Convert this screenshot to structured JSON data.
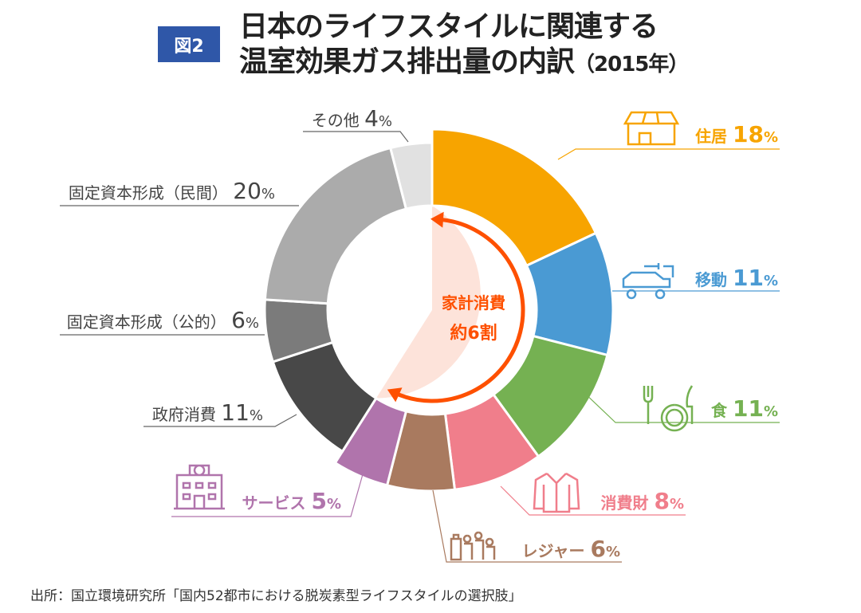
{
  "figure_label": "図2",
  "title_line1": "日本のライフスタイルに関連する",
  "title_line2": "温室効果ガス排出量の内訳",
  "title_year": "（2015年）",
  "source": "出所：国立環境研究所「国内52都市における脱炭素型ライフスタイルの選択肢」",
  "chart_data": {
    "type": "pie",
    "donut": true,
    "unit": "%",
    "title": "日本のライフスタイルに関連する温室効果ガス排出量の内訳（2015年）",
    "center_label": [
      "家計消費",
      "約6割"
    ],
    "household_group_value": 59,
    "slices": [
      {
        "label": "住居",
        "value": 18,
        "color": "#F7A400",
        "group": "household",
        "icon": "house-solar-icon"
      },
      {
        "label": "移動",
        "value": 11,
        "color": "#4A9AD3",
        "group": "household",
        "icon": "electric-car-icon"
      },
      {
        "label": "食",
        "value": 11,
        "color": "#75B152",
        "group": "household",
        "icon": "fork-plate-icon"
      },
      {
        "label": "消費財",
        "value": 8,
        "color": "#F07E8B",
        "group": "household",
        "icon": "shirt-icon"
      },
      {
        "label": "レジャー",
        "value": 6,
        "color": "#A97A5F",
        "group": "household",
        "icon": "family-luggage-icon"
      },
      {
        "label": "サービス",
        "value": 5,
        "color": "#B074AC",
        "group": "household",
        "icon": "hospital-building-icon"
      },
      {
        "label": "政府消費",
        "value": 11,
        "color": "#484848",
        "group": "other"
      },
      {
        "label": "固定資本形成（公的）",
        "value": 6,
        "color": "#7B7B7B",
        "group": "other"
      },
      {
        "label": "固定資本形成（民間）",
        "value": 20,
        "color": "#ABABAB",
        "group": "other"
      },
      {
        "label": "その他",
        "value": 4,
        "color": "#E1E1E1",
        "group": "other"
      }
    ],
    "highlight_color": "#FE5000",
    "highlight_fill": "#FDE3DA"
  }
}
